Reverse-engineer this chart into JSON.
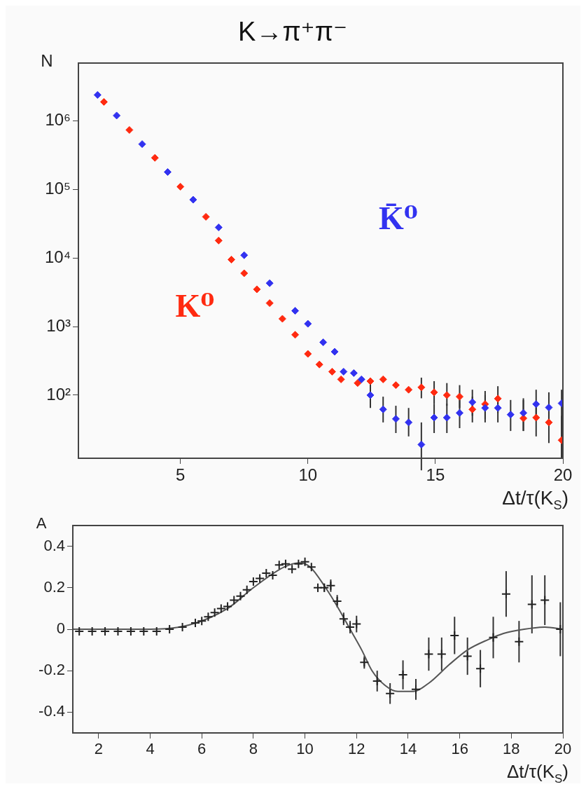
{
  "chart_data": [
    {
      "type": "scatter",
      "title": "K→π⁺π⁻",
      "xlabel": "Δt/τ(K$_{S}$)",
      "ylabel": "N",
      "log": "y",
      "grid": false,
      "marker": "diamond",
      "xlim": [
        1,
        20
      ],
      "xticks": [
        5,
        10,
        15,
        20
      ],
      "ylim": [
        12,
        7000000
      ],
      "yticks": [
        {
          "value": 100,
          "label": "10²"
        },
        {
          "value": 1000,
          "label": "10³"
        },
        {
          "value": 10000,
          "label": "10⁴"
        },
        {
          "value": 100000,
          "label": "10⁵"
        },
        {
          "value": 1000000,
          "label": "10⁶"
        }
      ],
      "series": [
        {
          "name": "K̄⁰",
          "color": "#3232f0",
          "x": [
            1.75,
            2.5,
            3.5,
            4.5,
            5.5,
            6.5,
            7.5,
            8.5,
            9.5,
            10.0,
            10.6,
            11.05,
            11.4,
            11.8,
            12.1,
            12.45,
            12.95,
            13.45,
            13.95,
            14.45,
            14.95,
            15.45,
            15.95,
            16.45,
            16.95,
            17.45,
            17.95,
            18.45,
            18.95,
            19.45,
            19.95
          ],
          "values": [
            2400000,
            1200000,
            460000,
            180000,
            71000,
            28000,
            11000,
            4300,
            1700,
            1100,
            590,
            430,
            220,
            210,
            170,
            100,
            62,
            45,
            40,
            19,
            47,
            47,
            55,
            79,
            65,
            65,
            52,
            55,
            74,
            66,
            76
          ],
          "errors": [
            null,
            null,
            null,
            null,
            null,
            null,
            null,
            null,
            null,
            null,
            null,
            null,
            null,
            null,
            null,
            [
              65,
              150
            ],
            [
              40,
              95
            ],
            [
              28,
              70
            ],
            [
              25,
              65
            ],
            [
              8,
              40
            ],
            [
              28,
              75
            ],
            [
              28,
              75
            ],
            [
              33,
              85
            ],
            [
              50,
              120
            ],
            [
              40,
              100
            ],
            [
              40,
              100
            ],
            [
              30,
              85
            ],
            [
              30,
              90
            ],
            [
              45,
              120
            ],
            [
              35,
              110
            ],
            [
              12,
              120
            ]
          ]
        },
        {
          "name": "K⁰",
          "color": "#ff2a10",
          "x": [
            2.0,
            3.0,
            4.0,
            5.0,
            6.0,
            6.5,
            7.0,
            7.5,
            8.0,
            8.5,
            9.0,
            9.5,
            10.0,
            10.45,
            10.95,
            11.3,
            11.95,
            12.45,
            12.95,
            13.45,
            13.95,
            14.45,
            14.95,
            15.45,
            15.95,
            16.45,
            16.95,
            17.45,
            18.45,
            18.95,
            19.45,
            19.95
          ],
          "values": [
            1900000,
            740000,
            290000,
            110000,
            40000,
            18000,
            9500,
            6000,
            3500,
            2200,
            1300,
            760,
            400,
            280,
            220,
            170,
            150,
            160,
            170,
            140,
            120,
            130,
            110,
            100,
            95,
            62,
            74,
            89,
            46,
            47,
            40,
            22
          ],
          "errors": [
            null,
            null,
            null,
            null,
            null,
            null,
            null,
            null,
            null,
            null,
            null,
            null,
            null,
            null,
            null,
            null,
            null,
            null,
            null,
            null,
            null,
            [
              90,
              180
            ],
            [
              75,
              160
            ],
            [
              70,
              150
            ],
            [
              65,
              140
            ],
            [
              40,
              95
            ],
            [
              45,
              115
            ],
            [
              55,
              135
            ],
            [
              30,
              85
            ],
            [
              25,
              80
            ],
            [
              20,
              75
            ],
            [
              12,
              50
            ]
          ]
        }
      ]
    },
    {
      "type": "scatter",
      "xlabel": "Δt/τ(K$_{S}$)",
      "ylabel": "A",
      "grid": false,
      "xlim": [
        1,
        20
      ],
      "xticks": [
        2,
        4,
        6,
        8,
        10,
        12,
        14,
        16,
        18,
        20
      ],
      "ylim": [
        -0.5,
        0.5
      ],
      "yticks": [
        -0.4,
        -0.2,
        0,
        0.2,
        0.4
      ],
      "series": [
        {
          "color": "#222222",
          "marker": "cross",
          "x": [
            1.25,
            1.75,
            2.25,
            2.75,
            3.25,
            3.75,
            4.25,
            4.75,
            5.25,
            5.75,
            6.0,
            6.25,
            6.5,
            6.75,
            7.0,
            7.25,
            7.5,
            7.75,
            8.0,
            8.25,
            8.5,
            8.75,
            9.0,
            9.25,
            9.5,
            9.75,
            10.0,
            10.25,
            10.5,
            10.75,
            11.0,
            11.25,
            11.5,
            11.75,
            12.0,
            12.3,
            12.8,
            13.3,
            13.8,
            14.3,
            14.8,
            15.3,
            15.8,
            16.3,
            16.8,
            17.3,
            17.8,
            18.3,
            18.8,
            19.3,
            19.9
          ],
          "values": [
            -0.01,
            -0.01,
            -0.01,
            -0.01,
            -0.01,
            -0.01,
            -0.01,
            0,
            0.01,
            0.03,
            0.04,
            0.06,
            0.08,
            0.1,
            0.11,
            0.14,
            0.16,
            0.19,
            0.23,
            0.245,
            0.27,
            0.26,
            0.31,
            0.315,
            0.29,
            0.315,
            0.325,
            0.3,
            0.2,
            0.2,
            0.21,
            0.135,
            0.05,
            0.01,
            0.025,
            -0.16,
            -0.25,
            -0.31,
            -0.22,
            -0.29,
            -0.12,
            -0.12,
            -0.03,
            -0.13,
            -0.19,
            -0.04,
            0.17,
            -0.06,
            0.12,
            0.14,
            0
          ],
          "errors": [
            null,
            null,
            null,
            null,
            null,
            null,
            null,
            null,
            null,
            null,
            null,
            null,
            null,
            null,
            null,
            null,
            null,
            null,
            null,
            null,
            null,
            null,
            null,
            null,
            null,
            null,
            null,
            null,
            0.02,
            0.02,
            0.03,
            0.03,
            0.03,
            0.03,
            0.04,
            0.03,
            0.05,
            0.05,
            0.07,
            0.05,
            0.08,
            0.08,
            0.09,
            0.09,
            0.09,
            0.1,
            0.11,
            0.1,
            0.14,
            0.12,
            0.13
          ]
        },
        {
          "type": "line",
          "color": "#555555",
          "marker": "none",
          "x": [
            1,
            4,
            5.5,
            7,
            8,
            9.2,
            9.8,
            10.2,
            10.8,
            11.3,
            11.75,
            12.2,
            12.6,
            13.1,
            13.6,
            14.2,
            14.8,
            15.6,
            16.3,
            17.1,
            17.7,
            18.5,
            19.3,
            20
          ],
          "values": [
            0,
            0,
            0.02,
            0.1,
            0.2,
            0.3,
            0.32,
            0.3,
            0.2,
            0.1,
            0,
            -0.1,
            -0.2,
            -0.27,
            -0.3,
            -0.3,
            -0.26,
            -0.17,
            -0.1,
            -0.05,
            -0.02,
            0,
            0.01,
            0
          ]
        }
      ]
    }
  ]
}
